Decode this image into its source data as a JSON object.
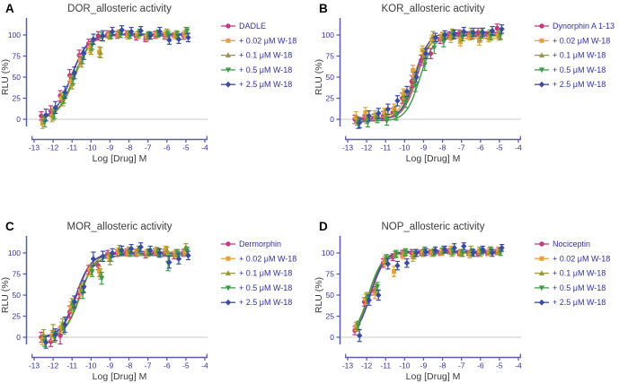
{
  "colors": {
    "axis": "#5C5DAB",
    "tick_text": "#31319B",
    "legend_text": "#31319B",
    "title_text": "#3A3A3A",
    "panel_letter": "#000000",
    "zero_line": "#C9C9C9",
    "background": "#FFFFFF"
  },
  "chart_data": [
    {
      "type": "scatter",
      "panel_label": "A",
      "title": "DOR_allosteric activity",
      "xlabel": "Log [Drug] M",
      "ylabel": "RLU (%)",
      "xlim": [
        -13,
        -4
      ],
      "ylim": [
        -15,
        118
      ],
      "x_ticks": [
        -13,
        -12,
        -11,
        -10,
        -9,
        -8,
        -7,
        -6,
        -5,
        -4
      ],
      "y_ticks": [
        0,
        25,
        50,
        75,
        100
      ],
      "grid": false,
      "legend_position": "right",
      "x": [
        -12.5,
        -12,
        -11.5,
        -11,
        -10.5,
        -10,
        -9.5,
        -9,
        -8.5,
        -8,
        -7.5,
        -7,
        -6.5,
        -6,
        -5.5,
        -5
      ],
      "series": [
        {
          "name": "DADLE",
          "color": "#C23A7F",
          "marker": "circle",
          "values": [
            4,
            10,
            28,
            52,
            76,
            90,
            99,
            101,
            100,
            101,
            98,
            95,
            100,
            99,
            100,
            99
          ],
          "errors": [
            5,
            6,
            6,
            7,
            6,
            5,
            5,
            4,
            4,
            4,
            4,
            3,
            4,
            4,
            3,
            4
          ],
          "fit": {
            "ec50": -11.05,
            "hill": 1.0,
            "top": 100,
            "bottom": 0
          }
        },
        {
          "name": "+ 0.02 μM W-18",
          "color": "#E2A33B",
          "marker": "square",
          "values": [
            -5,
            4,
            25,
            45,
            70,
            85,
            80,
            100,
            101,
            99,
            100,
            97,
            101,
            101,
            99,
            101
          ],
          "errors": [
            6,
            7,
            6,
            6,
            6,
            6,
            6,
            4,
            4,
            4,
            4,
            4,
            4,
            4,
            4,
            4
          ],
          "fit": {
            "ec50": -10.9,
            "hill": 1.0,
            "top": 100,
            "bottom": 0
          }
        },
        {
          "name": "+ 0.1  μM W-18",
          "color": "#99983A",
          "marker": "triangle-up",
          "values": [
            0,
            5,
            22,
            42,
            68,
            83,
            79,
            99,
            102,
            101,
            100,
            99,
            101,
            103,
            101,
            105
          ],
          "errors": [
            5,
            6,
            6,
            6,
            6,
            6,
            6,
            4,
            4,
            4,
            4,
            4,
            4,
            4,
            4,
            4
          ],
          "fit": {
            "ec50": -10.85,
            "hill": 1.0,
            "top": 101,
            "bottom": 0
          }
        },
        {
          "name": "+ 0.5  μM W-18",
          "color": "#3E9B49",
          "marker": "triangle-down",
          "values": [
            -3,
            7,
            25,
            48,
            72,
            88,
            98,
            100,
            101,
            100,
            103,
            100,
            102,
            101,
            100,
            105
          ],
          "errors": [
            6,
            6,
            6,
            6,
            6,
            5,
            5,
            4,
            4,
            4,
            4,
            4,
            4,
            4,
            4,
            4
          ],
          "fit": {
            "ec50": -10.9,
            "hill": 1.0,
            "top": 101,
            "bottom": 0
          }
        },
        {
          "name": "+ 2.5  μM W-18",
          "color": "#3D4B9E",
          "marker": "diamond",
          "values": [
            5,
            14,
            32,
            55,
            78,
            95,
            99,
            104,
            106,
            104,
            105,
            99,
            104,
            94,
            95,
            97
          ],
          "errors": [
            7,
            7,
            7,
            7,
            7,
            6,
            6,
            5,
            5,
            5,
            5,
            4,
            5,
            5,
            5,
            5
          ],
          "fit": {
            "ec50": -11.05,
            "hill": 1.0,
            "top": 101,
            "bottom": 0
          }
        }
      ]
    },
    {
      "type": "scatter",
      "panel_label": "B",
      "title": "KOR_allosteric activity",
      "xlabel": "Log [Drug] M",
      "ylabel": "RLU (%)",
      "xlim": [
        -13,
        -4
      ],
      "ylim": [
        -15,
        118
      ],
      "x_ticks": [
        -13,
        -12,
        -11,
        -10,
        -9,
        -8,
        -7,
        -6,
        -5,
        -4
      ],
      "y_ticks": [
        0,
        25,
        50,
        75,
        100
      ],
      "grid": false,
      "legend_position": "right",
      "x": [
        -12.5,
        -12,
        -11.5,
        -11,
        -10.5,
        -10,
        -9.5,
        -9,
        -8.5,
        -8,
        -7.5,
        -7,
        -6.5,
        -6,
        -5.5,
        -5
      ],
      "series": [
        {
          "name": "Dynorphin A 1-13",
          "color": "#C23A7F",
          "marker": "circle",
          "values": [
            0,
            1,
            2,
            4,
            8,
            25,
            45,
            70,
            78,
            95,
            100,
            102,
            100,
            103,
            100,
            108
          ],
          "errors": [
            5,
            4,
            4,
            5,
            5,
            6,
            7,
            6,
            6,
            5,
            4,
            4,
            4,
            5,
            4,
            5
          ],
          "fit": {
            "ec50": -9.35,
            "hill": 1.2,
            "top": 101,
            "bottom": 0
          }
        },
        {
          "name": "+ 0.02  μM W-18",
          "color": "#E2A33B",
          "marker": "square",
          "values": [
            2,
            8,
            5,
            8,
            12,
            30,
            58,
            82,
            95,
            97,
            96,
            92,
            98,
            93,
            96,
            100
          ],
          "errors": [
            7,
            6,
            5,
            5,
            6,
            6,
            6,
            5,
            5,
            4,
            5,
            5,
            4,
            5,
            4,
            4
          ],
          "fit": {
            "ec50": -9.55,
            "hill": 1.2,
            "top": 96,
            "bottom": 2
          }
        },
        {
          "name": "+ 0.1  μM W-18",
          "color": "#99983A",
          "marker": "triangle-up",
          "values": [
            -2,
            0,
            3,
            6,
            10,
            28,
            48,
            75,
            98,
            98,
            102,
            100,
            103,
            99,
            101,
            99
          ],
          "errors": [
            5,
            5,
            4,
            5,
            5,
            6,
            7,
            6,
            6,
            5,
            5,
            5,
            5,
            6,
            5,
            5
          ],
          "fit": {
            "ec50": -9.4,
            "hill": 1.2,
            "top": 100,
            "bottom": 0
          }
        },
        {
          "name": "+ 0.5  μM W-18",
          "color": "#3E9B49",
          "marker": "triangle-down",
          "values": [
            -6,
            -4,
            0,
            -2,
            4,
            20,
            40,
            65,
            85,
            92,
            100,
            98,
            100,
            102,
            99,
            100
          ],
          "errors": [
            5,
            5,
            4,
            5,
            5,
            6,
            7,
            7,
            7,
            6,
            5,
            5,
            5,
            6,
            5,
            5
          ],
          "fit": {
            "ec50": -9.2,
            "hill": 1.2,
            "top": 99,
            "bottom": -2
          }
        },
        {
          "name": "+ 2.5  μM W-18",
          "color": "#3D4B9E",
          "marker": "diamond",
          "values": [
            -4,
            4,
            7,
            12,
            22,
            33,
            50,
            78,
            97,
            100,
            101,
            104,
            103,
            103,
            105,
            107
          ],
          "errors": [
            6,
            6,
            6,
            6,
            6,
            6,
            6,
            6,
            5,
            5,
            5,
            5,
            5,
            5,
            5,
            5
          ],
          "fit": {
            "ec50": -9.45,
            "hill": 1.2,
            "top": 103,
            "bottom": 0
          }
        }
      ]
    },
    {
      "type": "scatter",
      "panel_label": "C",
      "title": "MOR_allosteric activity",
      "xlabel": "Log [Drug] M",
      "ylabel": "RLU (%)",
      "xlim": [
        -13,
        -4
      ],
      "ylim": [
        -15,
        118
      ],
      "x_ticks": [
        -13,
        -12,
        -11,
        -10,
        -9,
        -8,
        -7,
        -6,
        -5,
        -4
      ],
      "y_ticks": [
        0,
        25,
        50,
        75,
        100
      ],
      "grid": false,
      "legend_position": "right",
      "x": [
        -12.5,
        -12,
        -11.5,
        -11,
        -10.5,
        -10,
        -9.5,
        -9,
        -8.5,
        -8,
        -7.5,
        -7,
        -6.5,
        -6,
        -5.5,
        -5
      ],
      "series": [
        {
          "name": "Dermorphin",
          "color": "#C23A7F",
          "marker": "circle",
          "values": [
            0,
            -5,
            2,
            30,
            52,
            80,
            85,
            99,
            100,
            101,
            100,
            98,
            101,
            100,
            97,
            100
          ],
          "errors": [
            6,
            6,
            10,
            7,
            6,
            5,
            5,
            4,
            4,
            4,
            4,
            4,
            4,
            4,
            4,
            4
          ],
          "fit": {
            "ec50": -10.75,
            "hill": 1.1,
            "top": 100,
            "bottom": 0
          }
        },
        {
          "name": "+ 0.02 μM W-18",
          "color": "#E2A33B",
          "marker": "square",
          "values": [
            -3,
            2,
            12,
            36,
            55,
            80,
            78,
            95,
            102,
            100,
            101,
            100,
            103,
            104,
            99,
            101
          ],
          "errors": [
            6,
            6,
            6,
            6,
            6,
            6,
            6,
            5,
            4,
            4,
            4,
            4,
            4,
            4,
            4,
            4
          ],
          "fit": {
            "ec50": -10.6,
            "hill": 1.1,
            "top": 100,
            "bottom": 0
          }
        },
        {
          "name": "+ 0.1  μM W-18",
          "color": "#99983A",
          "marker": "triangle-up",
          "values": [
            3,
            8,
            16,
            40,
            58,
            80,
            75,
            92,
            105,
            103,
            104,
            100,
            102,
            103,
            100,
            107
          ],
          "errors": [
            6,
            7,
            6,
            6,
            6,
            6,
            6,
            6,
            4,
            4,
            4,
            4,
            4,
            4,
            4,
            4
          ],
          "fit": {
            "ec50": -10.55,
            "hill": 1.1,
            "top": 101,
            "bottom": 0
          }
        },
        {
          "name": "+ 0.5  μM W-18",
          "color": "#3E9B49",
          "marker": "triangle-down",
          "values": [
            -5,
            0,
            10,
            38,
            52,
            78,
            70,
            95,
            101,
            100,
            104,
            101,
            100,
            88,
            100,
            103
          ],
          "errors": [
            6,
            6,
            6,
            6,
            6,
            6,
            7,
            5,
            4,
            4,
            4,
            4,
            4,
            9,
            4,
            4
          ],
          "fit": {
            "ec50": -10.6,
            "hill": 1.1,
            "top": 97,
            "bottom": 0
          }
        },
        {
          "name": "+ 2.5  μM W-18",
          "color": "#3D4B9E",
          "marker": "diamond",
          "values": [
            -6,
            3,
            15,
            42,
            60,
            93,
            96,
            100,
            103,
            105,
            107,
            103,
            100,
            89,
            93,
            97
          ],
          "errors": [
            7,
            7,
            9,
            7,
            7,
            8,
            6,
            5,
            5,
            5,
            5,
            5,
            5,
            7,
            6,
            5
          ],
          "fit": {
            "ec50": -10.8,
            "hill": 1.1,
            "top": 99,
            "bottom": 0
          }
        }
      ]
    },
    {
      "type": "scatter",
      "panel_label": "D",
      "title": "NOP_allosteric activity",
      "xlabel": "Log [Drug] M",
      "ylabel": "RLU (%)",
      "xlim": [
        -13,
        -4
      ],
      "ylim": [
        -15,
        118
      ],
      "x_ticks": [
        -13,
        -12,
        -11,
        -10,
        -9,
        -8,
        -7,
        -6,
        -5,
        -4
      ],
      "y_ticks": [
        0,
        25,
        50,
        75,
        100
      ],
      "grid": false,
      "legend_position": "right",
      "x": [
        -12.5,
        -12,
        -11.5,
        -11,
        -10.5,
        -10,
        -9.5,
        -9,
        -8.5,
        -8,
        -7.5,
        -7,
        -6.5,
        -6,
        -5.5,
        -5
      ],
      "series": [
        {
          "name": "Nociceptin",
          "color": "#C23A7F",
          "marker": "circle",
          "values": [
            8,
            42,
            55,
            88,
            95,
            99,
            100,
            100,
            101,
            100,
            102,
            100,
            100,
            99,
            100,
            101
          ],
          "errors": [
            5,
            5,
            5,
            5,
            4,
            4,
            4,
            3,
            3,
            3,
            3,
            3,
            3,
            3,
            3,
            3
          ],
          "fit": {
            "ec50": -11.8,
            "hill": 1.2,
            "top": 100,
            "bottom": 0
          }
        },
        {
          "name": "+ 0.02 μM W-18",
          "color": "#E2A33B",
          "marker": "square",
          "values": [
            13,
            45,
            52,
            90,
            78,
            97,
            95,
            100,
            100,
            101,
            104,
            100,
            98,
            103,
            101,
            103
          ],
          "errors": [
            5,
            6,
            6,
            5,
            6,
            4,
            5,
            4,
            4,
            4,
            4,
            4,
            4,
            4,
            4,
            4
          ],
          "fit": {
            "ec50": -11.85,
            "hill": 1.2,
            "top": 100,
            "bottom": 0
          }
        },
        {
          "name": "+ 0.1  μM W-18",
          "color": "#99983A",
          "marker": "triangle-up",
          "values": [
            12,
            48,
            58,
            92,
            98,
            100,
            97,
            100,
            100,
            102,
            100,
            100,
            104,
            100,
            103,
            102
          ],
          "errors": [
            5,
            5,
            5,
            5,
            4,
            4,
            4,
            4,
            4,
            4,
            4,
            4,
            4,
            4,
            4,
            4
          ],
          "fit": {
            "ec50": -11.9,
            "hill": 1.2,
            "top": 100,
            "bottom": 0
          }
        },
        {
          "name": "+ 0.5  μM W-18",
          "color": "#3E9B49",
          "marker": "triangle-down",
          "values": [
            14,
            46,
            60,
            93,
            99,
            101,
            100,
            103,
            101,
            104,
            102,
            100,
            101,
            102,
            103,
            101
          ],
          "errors": [
            5,
            5,
            5,
            5,
            4,
            4,
            4,
            4,
            4,
            4,
            4,
            4,
            4,
            4,
            4,
            4
          ],
          "fit": {
            "ec50": -11.9,
            "hill": 1.2,
            "top": 101,
            "bottom": 0
          }
        },
        {
          "name": "+ 2.5  μM W-18",
          "color": "#3D4B9E",
          "marker": "diamond",
          "values": [
            2,
            44,
            50,
            87,
            85,
            88,
            100,
            101,
            103,
            104,
            106,
            108,
            100,
            104,
            100,
            106
          ],
          "errors": [
            7,
            6,
            6,
            6,
            5,
            5,
            4,
            4,
            4,
            4,
            5,
            4,
            4,
            4,
            4,
            4
          ],
          "fit": {
            "ec50": -11.8,
            "hill": 1.2,
            "top": 102,
            "bottom": 0
          }
        }
      ]
    }
  ]
}
